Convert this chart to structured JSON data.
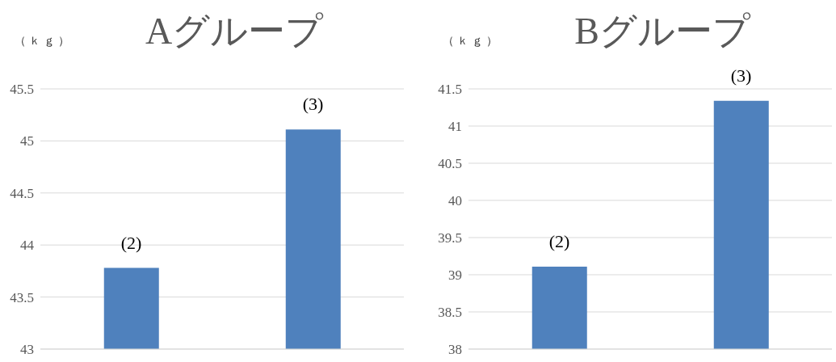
{
  "chart_data": [
    {
      "type": "bar",
      "title": "Aグループ",
      "ylabel": "（ｋｇ）",
      "categories": [
        null,
        null
      ],
      "values": [
        43.78,
        45.11
      ],
      "color": "#4f81bd",
      "ylim": [
        43,
        45.5
      ],
      "yticks": [
        43,
        43.5,
        44,
        44.5,
        45,
        45.5
      ],
      "grid": "y",
      "annotations": [
        {
          "text": "(2)",
          "y": 43.78
        },
        {
          "text": "(3)",
          "y": 45.11
        }
      ]
    },
    {
      "type": "bar",
      "title": "Bグループ",
      "ylabel": "（ｋｇ）",
      "categories": [
        null,
        null
      ],
      "values": [
        39.11,
        41.34
      ],
      "color": "#4f81bd",
      "ylim": [
        38,
        41.5
      ],
      "yticks": [
        38,
        38.5,
        39,
        39.5,
        40,
        40.5,
        41,
        41.5
      ],
      "grid": "y",
      "annotations": [
        {
          "text": "(2)",
          "y": 39.11
        },
        {
          "text": "(3)",
          "y": 41.34
        }
      ]
    }
  ]
}
